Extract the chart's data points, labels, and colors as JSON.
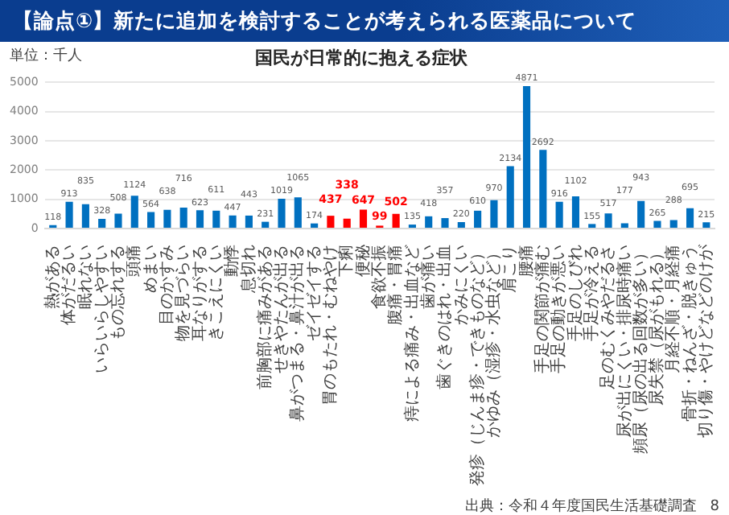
{
  "chart_data": {
    "type": "bar",
    "title": "【論点①】新たに追加を検討することが考えられる医薬品について",
    "subtitle": "国民が日常的に抱える症状",
    "annotations": [
      "単位：千人",
      "出典：令和４年度国民生活基礎調査",
      "8"
    ],
    "categories": [
      "熱がある",
      "体がだるい",
      "眠れない",
      "いらいらしやすい",
      "もの忘れする",
      "頭痛",
      "めまい",
      "目のかすみ",
      "物を見づらい",
      "耳なりがする",
      "きこえにくい",
      "動悸",
      "息切れ",
      "前胸部に痛みがある",
      "せきやたんが出る",
      "鼻がつまる・鼻汁が出る",
      "ゼイゼイする",
      "胃のもたれ・むねやけ",
      "下痢",
      "便秘",
      "食欲不振",
      "腹痛・胃痛",
      "痔による痛み・出血など",
      "歯が痛い",
      "歯ぐきのはれ・出血",
      "かみにくい",
      "発疹（じんま疹・できものなど）",
      "かゆみ（湿疹・水虫など）",
      "肩こり",
      "腰痛",
      "手足の関節が痛む",
      "手足の動きが悪い",
      "手足のしびれ",
      "手足が冷える",
      "足のむくみやだるさ",
      "尿が出にくい・排尿時痛い",
      "頻尿（尿の出る回数が多い）",
      "尿失禁（尿がもれる）",
      "月経不順・月経痛",
      "骨折・ねんざ・脱きゅう",
      "切り傷・やけどなどのけが"
    ],
    "values": [
      118,
      913,
      835,
      328,
      508,
      1124,
      564,
      638,
      716,
      623,
      611,
      447,
      443,
      231,
      1019,
      1065,
      174,
      437,
      338,
      647,
      99,
      502,
      135,
      418,
      357,
      220,
      610,
      970,
      2134,
      4871,
      2692,
      916,
      1102,
      155,
      517,
      177,
      943,
      265,
      288,
      695,
      215
    ],
    "colors": [
      "#0070c0",
      "#0070c0",
      "#0070c0",
      "#0070c0",
      "#0070c0",
      "#0070c0",
      "#0070c0",
      "#0070c0",
      "#0070c0",
      "#0070c0",
      "#0070c0",
      "#0070c0",
      "#0070c0",
      "#0070c0",
      "#0070c0",
      "#0070c0",
      "#0070c0",
      "#ff0000",
      "#ff0000",
      "#ff0000",
      "#ff0000",
      "#ff0000",
      "#0070c0",
      "#0070c0",
      "#0070c0",
      "#0070c0",
      "#0070c0",
      "#0070c0",
      "#0070c0",
      "#0070c0",
      "#0070c0",
      "#0070c0",
      "#0070c0",
      "#0070c0",
      "#0070c0",
      "#0070c0",
      "#0070c0",
      "#0070c0",
      "#0070c0",
      "#0070c0",
      "#0070c0"
    ],
    "ylim": [
      0,
      5000
    ],
    "yticks": [
      0,
      1000,
      2000,
      3000,
      4000,
      5000
    ],
    "grid": "y",
    "data_labels": true
  }
}
